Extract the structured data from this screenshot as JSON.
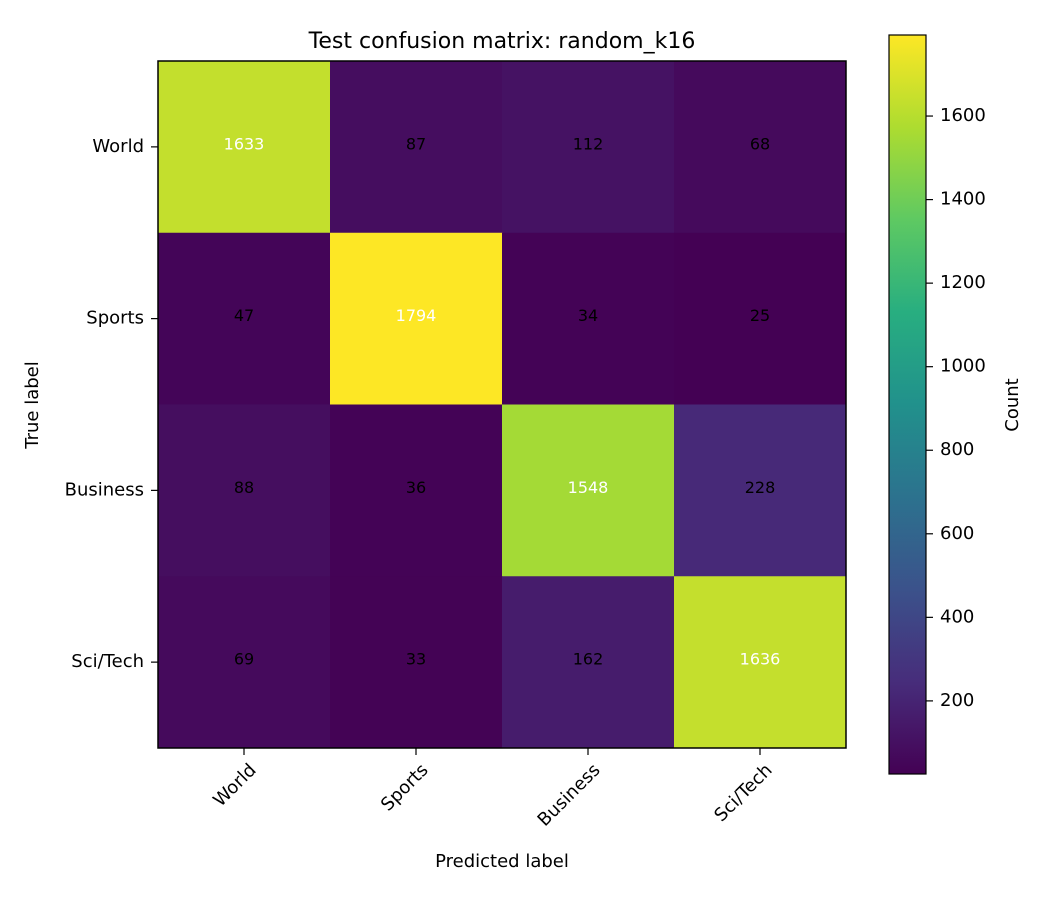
{
  "chart_data": {
    "type": "heatmap",
    "title": "Test confusion matrix: random_k16",
    "xlabel": "Predicted label",
    "ylabel": "True label",
    "x_categories": [
      "World",
      "Sports",
      "Business",
      "Sci/Tech"
    ],
    "y_categories": [
      "World",
      "Sports",
      "Business",
      "Sci/Tech"
    ],
    "values": [
      [
        1633,
        87,
        112,
        68
      ],
      [
        47,
        1794,
        34,
        25
      ],
      [
        88,
        36,
        1548,
        228
      ],
      [
        69,
        33,
        162,
        1636
      ]
    ],
    "colormap": "viridis",
    "colorbar": {
      "label": "Count",
      "range": [
        25,
        1794
      ],
      "ticks": [
        200,
        400,
        600,
        800,
        1000,
        1200,
        1400,
        1600
      ]
    },
    "text_threshold": 909.5,
    "text_color_high": "#ffffff",
    "text_color_low": "#000000"
  }
}
